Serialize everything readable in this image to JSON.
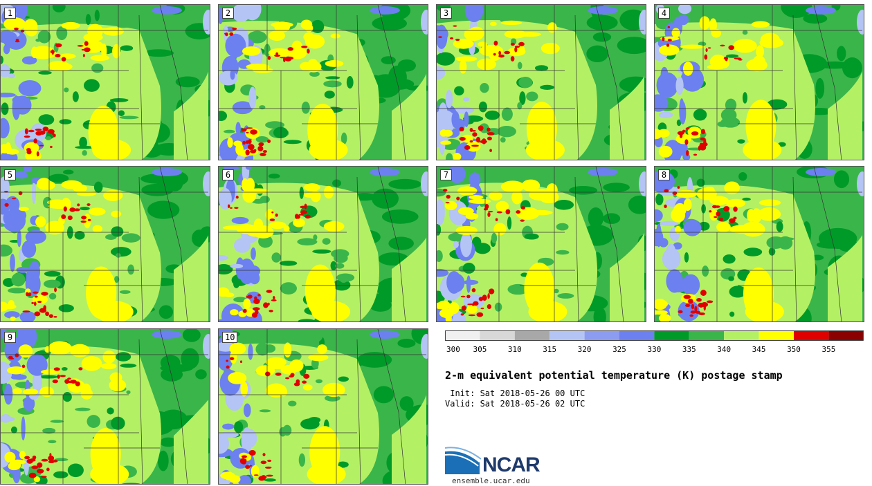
{
  "panels": [
    {
      "label": "1"
    },
    {
      "label": "2"
    },
    {
      "label": "3"
    },
    {
      "label": "4"
    },
    {
      "label": "5"
    },
    {
      "label": "6"
    },
    {
      "label": "7"
    },
    {
      "label": "8"
    },
    {
      "label": "9"
    },
    {
      "label": "10"
    }
  ],
  "colorbar": {
    "ticks": [
      "300",
      "305",
      "310",
      "315",
      "320",
      "325",
      "330",
      "335",
      "340",
      "345",
      "350",
      "355"
    ],
    "colors": [
      "#f0f0f0",
      "#d8d8d8",
      "#a8a8a8",
      "#b4c4f4",
      "#8c9cf0",
      "#6c80f0",
      "#009a28",
      "#3ab54a",
      "#b4f064",
      "#ffff00",
      "#e00000",
      "#8b0000"
    ]
  },
  "title": "2-m equivalent potential temperature (K) postage stamp",
  "init": " Init: Sat 2018-05-26 00 UTC",
  "valid": "Valid: Sat 2018-05-26 02 UTC",
  "logo": {
    "text": "NCAR"
  },
  "site": "ensemble.ucar.edu"
}
